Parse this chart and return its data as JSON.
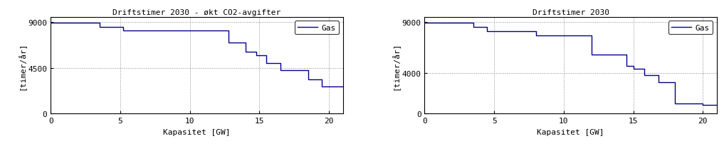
{
  "title1": "Driftstimer 2030 - økt CO2-avgifter",
  "title2": "Driftstimer 2030",
  "xlabel": "Kapasitet [GW]",
  "ylabel": "[timer/år]",
  "legend_label": "Gas",
  "line_color": "#00008B",
  "background_color": "#ffffff",
  "xlim": [
    0,
    21
  ],
  "ylim": [
    0,
    9500
  ],
  "xticks": [
    0,
    5,
    10,
    15,
    20
  ],
  "yticks1": [
    0,
    4500,
    9000
  ],
  "yticks2": [
    0,
    4000,
    9000
  ],
  "chart1_x": [
    0,
    3.5,
    3.5,
    5.2,
    5.2,
    9.8,
    9.8,
    12.8,
    12.8,
    14.0,
    14.0,
    14.8,
    14.8,
    15.5,
    15.5,
    16.5,
    16.5,
    18.5,
    18.5,
    19.5,
    19.5,
    21.0
  ],
  "chart1_y": [
    8950,
    8950,
    8500,
    8500,
    8150,
    8150,
    8150,
    8150,
    7000,
    7000,
    6100,
    6100,
    5700,
    5700,
    5000,
    5000,
    4300,
    4300,
    3400,
    3400,
    2700,
    2700
  ],
  "chart2_x": [
    0,
    3.5,
    3.5,
    4.5,
    4.5,
    8.0,
    8.0,
    12.0,
    12.0,
    14.5,
    14.5,
    15.0,
    15.0,
    15.8,
    15.8,
    16.8,
    16.8,
    18.0,
    18.0,
    20.0,
    20.0,
    21.0
  ],
  "chart2_y": [
    8950,
    8950,
    8550,
    8550,
    8100,
    8100,
    7700,
    7700,
    5800,
    5800,
    4700,
    4700,
    4400,
    4400,
    3800,
    3800,
    3100,
    3100,
    1000,
    1000,
    900,
    900
  ],
  "figsize": [
    10.17,
    2.07
  ],
  "dpi": 100
}
